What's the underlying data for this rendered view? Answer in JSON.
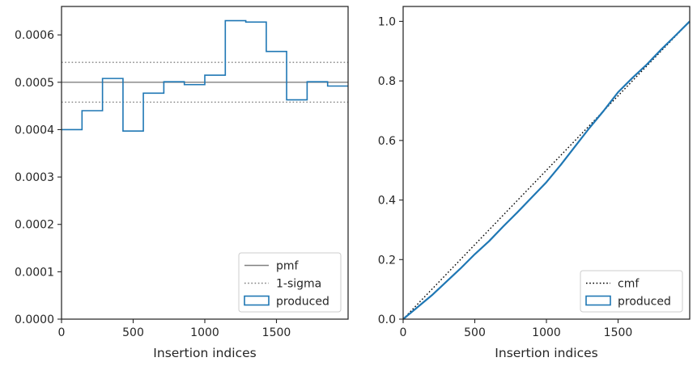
{
  "chart_data": [
    {
      "type": "histogram",
      "xlabel": "Insertion indices",
      "ylabel": "",
      "xlim": [
        0,
        2000
      ],
      "ylim": [
        0,
        0.00066
      ],
      "xticks": [
        0,
        500,
        1000,
        1500
      ],
      "xtick_labels": [
        "0",
        "500",
        "1000",
        "1500"
      ],
      "yticks": [
        0,
        0.0001,
        0.0002,
        0.0003,
        0.0004,
        0.0005,
        0.0006
      ],
      "ytick_labels": [
        "0.0000",
        "0.0001",
        "0.0002",
        "0.0003",
        "0.0004",
        "0.0005",
        "0.0006"
      ],
      "grid": false,
      "legend_position": "lower-right",
      "bin_edges": [
        0,
        143,
        286,
        429,
        571,
        714,
        857,
        1000,
        1143,
        1286,
        1429,
        1571,
        1714,
        1857,
        2000
      ],
      "series": [
        {
          "name": "produced",
          "style": "step",
          "color": "#1f77b4",
          "values": [
            0.0004,
            0.00044,
            0.000508,
            0.000397,
            0.000477,
            0.000501,
            0.000495,
            0.000515,
            0.00063,
            0.000627,
            0.000565,
            0.000463,
            0.000501,
            0.000492
          ]
        }
      ],
      "hlines": [
        {
          "name": "pmf",
          "y": 0.0005,
          "style": "solid",
          "color": "#808080"
        },
        {
          "name": "1-sigma",
          "y": 0.000542,
          "style": "dotted",
          "color": "#808080"
        },
        {
          "name": "1-sigma",
          "y": 0.000458,
          "style": "dotted",
          "color": "#808080"
        }
      ],
      "legend": [
        "pmf",
        "1-sigma",
        "produced"
      ]
    },
    {
      "type": "line",
      "xlabel": "Insertion indices",
      "ylabel": "",
      "xlim": [
        0,
        2000
      ],
      "ylim": [
        0,
        1.05
      ],
      "xticks": [
        0,
        500,
        1000,
        1500
      ],
      "xtick_labels": [
        "0",
        "500",
        "1000",
        "1500"
      ],
      "yticks": [
        0,
        0.2,
        0.4,
        0.6,
        0.8,
        1.0
      ],
      "ytick_labels": [
        "0.0",
        "0.2",
        "0.4",
        "0.6",
        "0.8",
        "1.0"
      ],
      "grid": false,
      "legend_position": "lower-right",
      "series": [
        {
          "name": "cmf",
          "style": "dotted",
          "color": "#000000",
          "x": [
            0,
            2000
          ],
          "y": [
            0,
            1.0
          ]
        },
        {
          "name": "produced",
          "style": "step",
          "color": "#1f77b4",
          "x": [
            0,
            100,
            200,
            300,
            400,
            500,
            600,
            700,
            800,
            900,
            1000,
            1100,
            1200,
            1300,
            1400,
            1500,
            1600,
            1700,
            1800,
            1900,
            2000
          ],
          "y": [
            0,
            0.04,
            0.08,
            0.125,
            0.17,
            0.218,
            0.262,
            0.312,
            0.36,
            0.41,
            0.46,
            0.518,
            0.58,
            0.642,
            0.7,
            0.762,
            0.81,
            0.855,
            0.905,
            0.952,
            1.0
          ]
        }
      ],
      "legend": [
        "cmf",
        "produced"
      ]
    }
  ]
}
